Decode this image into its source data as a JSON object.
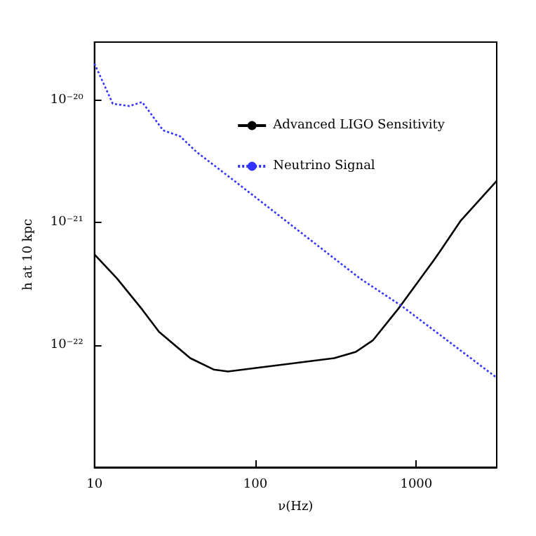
{
  "chart_data": {
    "type": "line",
    "xlabel": "ν(Hz)",
    "ylabel": "h at 10 kpc",
    "log": "xy",
    "grid": false,
    "legend": "top right",
    "marker": "none",
    "xlim": [
      10,
      3162
    ],
    "ylim": [
      1e-23,
      3e-20
    ],
    "xticks": [
      10,
      100,
      1000
    ],
    "yticks": [
      {
        "value": 1e-22,
        "label": "10⁻²²"
      },
      {
        "value": 1e-21,
        "label": "10⁻²¹"
      },
      {
        "value": 1e-20,
        "label": "10⁻²⁰"
      }
    ],
    "series": [
      {
        "name": "Advanced LIGO Sensitivity",
        "color": "#000000",
        "line_style": "solid",
        "x": [
          10,
          13.8,
          19.8,
          25.2,
          39.4,
          55,
          67.6,
          309,
          422,
          537,
          767,
          1280,
          1400,
          1880,
          3160
        ],
        "values": [
          5.5e-22,
          3.5e-22,
          1.95e-22,
          1.28e-22,
          7.8e-23,
          6.3e-23,
          6.07e-23,
          7.8e-23,
          8.8e-23,
          1.09e-22,
          1.95e-22,
          4.9e-22,
          5.8e-22,
          1.03e-21,
          2.2e-21
        ]
      },
      {
        "name": "Neutrino Signal",
        "color": "#3333ff",
        "line_style": "dotted",
        "x": [
          10,
          13,
          16.5,
          19.8,
          26.7,
          34,
          43,
          74,
          447,
          805,
          3160
        ],
        "values": [
          2e-20,
          9.4e-21,
          9e-21,
          9.7e-21,
          5.7e-21,
          5.1e-21,
          3.8e-21,
          2.2e-21,
          3.5e-22,
          2.1e-22,
          5.4e-23
        ]
      }
    ]
  }
}
